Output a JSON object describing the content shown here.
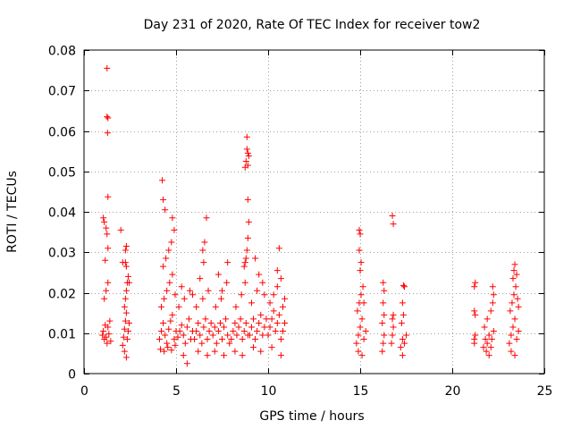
{
  "chart_data": {
    "type": "scatter",
    "title": "Day 231 of 2020, Rate Of TEC Index for receiver tow2",
    "xlabel": "GPS time / hours",
    "ylabel": "ROTI / TECUs",
    "xlim": [
      0,
      25
    ],
    "ylim": [
      0,
      0.08
    ],
    "xticks": [
      0,
      5,
      10,
      15,
      20,
      25
    ],
    "xtick_labels": [
      "0",
      "5",
      "10",
      "15",
      "20",
      "25"
    ],
    "yticks": [
      0,
      0.01,
      0.02,
      0.03,
      0.04,
      0.05,
      0.06,
      0.07,
      0.08
    ],
    "ytick_labels": [
      "0",
      "0.01",
      "0.02",
      "0.03",
      "0.04",
      "0.05",
      "0.06",
      "0.07",
      "0.08"
    ],
    "grid": true,
    "marker": "+",
    "marker_color": "#ff0000",
    "series": [
      {
        "name": "ROTI",
        "points": [
          [
            1.0,
            0.0095
          ],
          [
            1.05,
            0.0105
          ],
          [
            1.1,
            0.0085
          ],
          [
            1.15,
            0.012
          ],
          [
            1.2,
            0.009
          ],
          [
            1.25,
            0.0075
          ],
          [
            1.3,
            0.0115
          ],
          [
            1.35,
            0.0098
          ],
          [
            1.4,
            0.013
          ],
          [
            1.45,
            0.008
          ],
          [
            1.05,
            0.0385
          ],
          [
            1.1,
            0.0375
          ],
          [
            1.2,
            0.036
          ],
          [
            1.25,
            0.0345
          ],
          [
            1.3,
            0.031
          ],
          [
            1.15,
            0.028
          ],
          [
            1.3,
            0.0225
          ],
          [
            1.2,
            0.0205
          ],
          [
            1.1,
            0.0185
          ],
          [
            1.25,
            0.0755
          ],
          [
            1.25,
            0.0635
          ],
          [
            1.3,
            0.0632
          ],
          [
            1.28,
            0.0595
          ],
          [
            1.3,
            0.0437
          ],
          [
            2.1,
            0.007
          ],
          [
            2.15,
            0.009
          ],
          [
            2.2,
            0.011
          ],
          [
            2.25,
            0.013
          ],
          [
            2.3,
            0.015
          ],
          [
            2.35,
            0.0085
          ],
          [
            2.4,
            0.0105
          ],
          [
            2.45,
            0.0125
          ],
          [
            2.2,
            0.0055
          ],
          [
            2.3,
            0.004
          ],
          [
            2.2,
            0.0165
          ],
          [
            2.25,
            0.0185
          ],
          [
            2.3,
            0.0205
          ],
          [
            2.35,
            0.0225
          ],
          [
            2.4,
            0.024
          ],
          [
            2.45,
            0.0225
          ],
          [
            2.3,
            0.0265
          ],
          [
            2.25,
            0.0275
          ],
          [
            2.3,
            0.0315
          ],
          [
            2.25,
            0.0305
          ],
          [
            2.0,
            0.0355
          ],
          [
            2.1,
            0.0275
          ],
          [
            4.1,
            0.0085
          ],
          [
            4.2,
            0.0105
          ],
          [
            4.3,
            0.0125
          ],
          [
            4.4,
            0.0095
          ],
          [
            4.5,
            0.0075
          ],
          [
            4.6,
            0.011
          ],
          [
            4.7,
            0.013
          ],
          [
            4.8,
            0.0145
          ],
          [
            4.9,
            0.0085
          ],
          [
            5.0,
            0.0105
          ],
          [
            4.15,
            0.006
          ],
          [
            4.35,
            0.0055
          ],
          [
            4.55,
            0.0065
          ],
          [
            4.75,
            0.0058
          ],
          [
            4.95,
            0.007
          ],
          [
            4.2,
            0.0165
          ],
          [
            4.35,
            0.0185
          ],
          [
            4.5,
            0.0205
          ],
          [
            4.65,
            0.0225
          ],
          [
            4.8,
            0.0245
          ],
          [
            4.95,
            0.0195
          ],
          [
            4.3,
            0.0265
          ],
          [
            4.45,
            0.0285
          ],
          [
            4.6,
            0.0305
          ],
          [
            4.75,
            0.0325
          ],
          [
            4.9,
            0.0355
          ],
          [
            4.8,
            0.0385
          ],
          [
            4.4,
            0.0405
          ],
          [
            4.3,
            0.043
          ],
          [
            4.25,
            0.0478
          ],
          [
            5.1,
            0.009
          ],
          [
            5.2,
            0.0105
          ],
          [
            5.3,
            0.012
          ],
          [
            5.4,
            0.0095
          ],
          [
            5.5,
            0.0075
          ],
          [
            5.6,
            0.0115
          ],
          [
            5.7,
            0.0135
          ],
          [
            5.8,
            0.0085
          ],
          [
            5.9,
            0.0105
          ],
          [
            5.4,
            0.0045
          ],
          [
            5.6,
            0.0025
          ],
          [
            5.15,
            0.0165
          ],
          [
            5.45,
            0.0185
          ],
          [
            5.75,
            0.0205
          ],
          [
            5.3,
            0.0215
          ],
          [
            5.9,
            0.0195
          ],
          [
            6.0,
            0.0085
          ],
          [
            6.1,
            0.0105
          ],
          [
            6.2,
            0.0125
          ],
          [
            6.3,
            0.0095
          ],
          [
            6.4,
            0.0075
          ],
          [
            6.5,
            0.0115
          ],
          [
            6.6,
            0.0135
          ],
          [
            6.7,
            0.0085
          ],
          [
            6.8,
            0.0105
          ],
          [
            6.9,
            0.0125
          ],
          [
            6.2,
            0.0055
          ],
          [
            6.7,
            0.0045
          ],
          [
            6.1,
            0.0165
          ],
          [
            6.45,
            0.0185
          ],
          [
            6.75,
            0.0205
          ],
          [
            6.3,
            0.0235
          ],
          [
            6.5,
            0.0275
          ],
          [
            6.55,
            0.0325
          ],
          [
            6.45,
            0.0305
          ],
          [
            6.65,
            0.0385
          ],
          [
            7.0,
            0.0095
          ],
          [
            7.1,
            0.0115
          ],
          [
            7.2,
            0.0075
          ],
          [
            7.3,
            0.0105
          ],
          [
            7.4,
            0.0125
          ],
          [
            7.5,
            0.0085
          ],
          [
            7.6,
            0.0115
          ],
          [
            7.7,
            0.0135
          ],
          [
            7.8,
            0.0095
          ],
          [
            7.9,
            0.0075
          ],
          [
            7.1,
            0.0055
          ],
          [
            7.6,
            0.0045
          ],
          [
            7.15,
            0.0165
          ],
          [
            7.45,
            0.0185
          ],
          [
            7.75,
            0.0225
          ],
          [
            7.3,
            0.0245
          ],
          [
            7.8,
            0.0275
          ],
          [
            7.5,
            0.0205
          ],
          [
            8.0,
            0.0085
          ],
          [
            8.1,
            0.0105
          ],
          [
            8.2,
            0.0125
          ],
          [
            8.3,
            0.0095
          ],
          [
            8.4,
            0.0115
          ],
          [
            8.5,
            0.0135
          ],
          [
            8.6,
            0.0085
          ],
          [
            8.7,
            0.0105
          ],
          [
            8.8,
            0.0125
          ],
          [
            8.9,
            0.0095
          ],
          [
            8.2,
            0.0055
          ],
          [
            8.6,
            0.0045
          ],
          [
            8.25,
            0.0165
          ],
          [
            8.55,
            0.0195
          ],
          [
            8.75,
            0.0225
          ],
          [
            8.7,
            0.0265
          ],
          [
            8.8,
            0.0285
          ],
          [
            8.85,
            0.0305
          ],
          [
            8.9,
            0.0335
          ],
          [
            8.75,
            0.0275
          ],
          [
            8.75,
            0.051
          ],
          [
            8.8,
            0.0525
          ],
          [
            8.85,
            0.0555
          ],
          [
            8.9,
            0.0545
          ],
          [
            8.85,
            0.0585
          ],
          [
            8.9,
            0.0515
          ],
          [
            8.95,
            0.0538
          ],
          [
            8.9,
            0.043
          ],
          [
            8.95,
            0.0375
          ],
          [
            9.0,
            0.0095
          ],
          [
            9.1,
            0.0115
          ],
          [
            9.2,
            0.0135
          ],
          [
            9.3,
            0.0085
          ],
          [
            9.4,
            0.0105
          ],
          [
            9.5,
            0.0125
          ],
          [
            9.6,
            0.0145
          ],
          [
            9.7,
            0.0095
          ],
          [
            9.8,
            0.0115
          ],
          [
            9.9,
            0.0135
          ],
          [
            9.2,
            0.0065
          ],
          [
            9.6,
            0.0055
          ],
          [
            9.1,
            0.0175
          ],
          [
            9.4,
            0.0205
          ],
          [
            9.7,
            0.0225
          ],
          [
            9.5,
            0.0245
          ],
          [
            9.3,
            0.0285
          ],
          [
            9.8,
            0.0195
          ],
          [
            10.0,
            0.0095
          ],
          [
            10.1,
            0.0115
          ],
          [
            10.2,
            0.0135
          ],
          [
            10.3,
            0.0155
          ],
          [
            10.4,
            0.0105
          ],
          [
            10.5,
            0.0125
          ],
          [
            10.6,
            0.0145
          ],
          [
            10.7,
            0.0085
          ],
          [
            10.8,
            0.0105
          ],
          [
            10.9,
            0.0125
          ],
          [
            10.7,
            0.0045
          ],
          [
            10.2,
            0.0065
          ],
          [
            10.1,
            0.0175
          ],
          [
            10.3,
            0.0195
          ],
          [
            10.5,
            0.0215
          ],
          [
            10.7,
            0.0235
          ],
          [
            10.5,
            0.0255
          ],
          [
            10.6,
            0.031
          ],
          [
            10.8,
            0.0165
          ],
          [
            10.9,
            0.0185
          ],
          [
            14.8,
            0.0075
          ],
          [
            14.9,
            0.0095
          ],
          [
            15.0,
            0.0115
          ],
          [
            15.1,
            0.0135
          ],
          [
            15.2,
            0.0085
          ],
          [
            15.3,
            0.0105
          ],
          [
            14.9,
            0.0055
          ],
          [
            15.1,
            0.0045
          ],
          [
            14.85,
            0.0155
          ],
          [
            14.95,
            0.0175
          ],
          [
            15.05,
            0.0195
          ],
          [
            15.15,
            0.0215
          ],
          [
            15.2,
            0.0175
          ],
          [
            15.0,
            0.0255
          ],
          [
            15.05,
            0.0275
          ],
          [
            14.95,
            0.0305
          ],
          [
            15.0,
            0.0345
          ],
          [
            14.95,
            0.0355
          ],
          [
            16.2,
            0.0055
          ],
          [
            16.25,
            0.0075
          ],
          [
            16.3,
            0.0095
          ],
          [
            16.2,
            0.0125
          ],
          [
            16.3,
            0.0145
          ],
          [
            16.25,
            0.0175
          ],
          [
            16.3,
            0.0205
          ],
          [
            16.25,
            0.0225
          ],
          [
            16.7,
            0.0075
          ],
          [
            16.75,
            0.0095
          ],
          [
            16.8,
            0.0115
          ],
          [
            16.75,
            0.0135
          ],
          [
            16.8,
            0.0145
          ],
          [
            16.75,
            0.039
          ],
          [
            16.8,
            0.037
          ],
          [
            17.2,
            0.0065
          ],
          [
            17.3,
            0.0085
          ],
          [
            17.4,
            0.0075
          ],
          [
            17.5,
            0.0095
          ],
          [
            17.3,
            0.0045
          ],
          [
            17.25,
            0.0125
          ],
          [
            17.35,
            0.0145
          ],
          [
            17.3,
            0.0175
          ],
          [
            17.4,
            0.0215
          ],
          [
            17.35,
            0.0218
          ],
          [
            21.2,
            0.0075
          ],
          [
            21.25,
            0.0095
          ],
          [
            21.2,
            0.0085
          ],
          [
            21.25,
            0.0145
          ],
          [
            21.2,
            0.0155
          ],
          [
            21.25,
            0.0225
          ],
          [
            21.2,
            0.0215
          ],
          [
            21.7,
            0.0065
          ],
          [
            21.8,
            0.0085
          ],
          [
            21.9,
            0.0075
          ],
          [
            22.0,
            0.0095
          ],
          [
            21.85,
            0.0055
          ],
          [
            22.0,
            0.0045
          ],
          [
            21.75,
            0.0115
          ],
          [
            21.9,
            0.0135
          ],
          [
            22.1,
            0.0155
          ],
          [
            22.2,
            0.0175
          ],
          [
            22.25,
            0.0195
          ],
          [
            22.2,
            0.0215
          ],
          [
            22.15,
            0.0085
          ],
          [
            22.25,
            0.0105
          ],
          [
            22.1,
            0.0065
          ],
          [
            23.1,
            0.0075
          ],
          [
            23.2,
            0.0095
          ],
          [
            23.3,
            0.0115
          ],
          [
            23.4,
            0.0135
          ],
          [
            23.5,
            0.0085
          ],
          [
            23.6,
            0.0105
          ],
          [
            23.2,
            0.0055
          ],
          [
            23.4,
            0.0045
          ],
          [
            23.15,
            0.0155
          ],
          [
            23.25,
            0.0175
          ],
          [
            23.35,
            0.0195
          ],
          [
            23.45,
            0.0215
          ],
          [
            23.3,
            0.0235
          ],
          [
            23.35,
            0.0255
          ],
          [
            23.4,
            0.027
          ],
          [
            23.5,
            0.0245
          ],
          [
            23.55,
            0.0185
          ],
          [
            23.6,
            0.0165
          ]
        ]
      }
    ]
  }
}
